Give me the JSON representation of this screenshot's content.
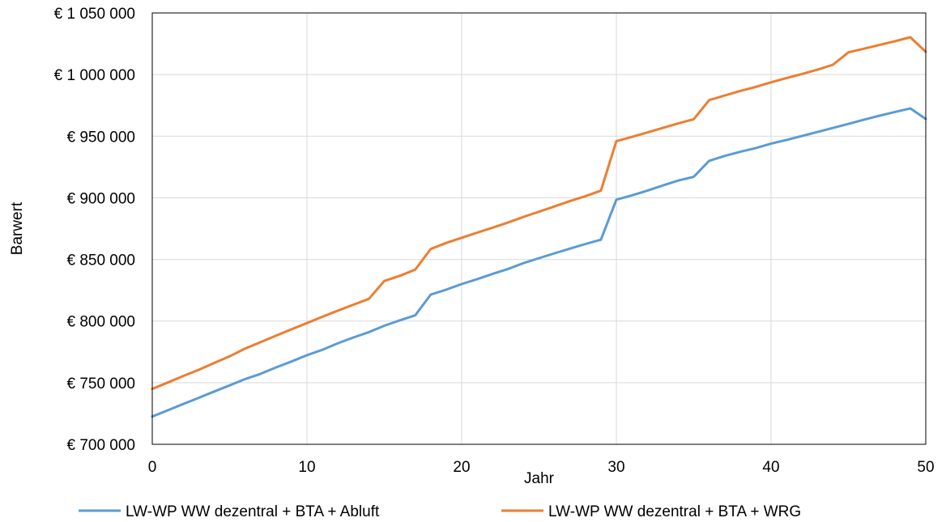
{
  "chart_data": {
    "type": "line",
    "title": "",
    "xlabel": "Jahr",
    "ylabel": "Barwert",
    "xlim": [
      0,
      50
    ],
    "ylim": [
      700000,
      1050000
    ],
    "x_ticks": [
      0,
      10,
      20,
      30,
      40,
      50
    ],
    "x_tick_labels": [
      "0",
      "10",
      "20",
      "30",
      "40",
      "50"
    ],
    "y_ticks": [
      700000,
      750000,
      800000,
      850000,
      900000,
      950000,
      1000000,
      1050000
    ],
    "y_tick_labels": [
      "€ 700 000",
      "€ 750 000",
      "€ 800 000",
      "€ 850 000",
      "€ 900 000",
      "€ 950 000",
      "€ 1 000 000",
      "€ 1 050 000"
    ],
    "grid": "vertical-and-horizontal",
    "legend_position": "bottom",
    "x": [
      0,
      1,
      2,
      3,
      4,
      5,
      6,
      7,
      8,
      9,
      10,
      11,
      12,
      13,
      14,
      15,
      16,
      17,
      18,
      19,
      20,
      21,
      22,
      23,
      24,
      25,
      26,
      27,
      28,
      29,
      30,
      31,
      32,
      33,
      34,
      35,
      36,
      37,
      38,
      39,
      40,
      41,
      42,
      43,
      44,
      45,
      46,
      47,
      48,
      49,
      50
    ],
    "series": [
      {
        "name": "LW-WP WW dezentral + BTA + Abluft",
        "color": "#5B9BD5",
        "values": [
          722500,
          727600,
          732700,
          737700,
          742800,
          747800,
          752900,
          757200,
          762400,
          767200,
          772300,
          776700,
          782000,
          786700,
          791000,
          796200,
          800600,
          804700,
          821500,
          825500,
          830000,
          834000,
          838300,
          842300,
          847000,
          851000,
          855000,
          858800,
          862500,
          866000,
          898500,
          902000,
          905800,
          910000,
          914000,
          917000,
          930000,
          934000,
          937300,
          940300,
          944000,
          947000,
          950200,
          953400,
          956700,
          960000,
          963400,
          966600,
          969600,
          972600,
          964000
        ]
      },
      {
        "name": "LW-WP WW dezentral + BTA + WRG",
        "color": "#ED7D31",
        "values": [
          745000,
          750100,
          755400,
          760400,
          766000,
          771400,
          777700,
          782900,
          788100,
          793300,
          798400,
          803500,
          808500,
          813300,
          818000,
          832500,
          836700,
          841800,
          858500,
          863400,
          867600,
          871700,
          875800,
          880000,
          884500,
          888700,
          893000,
          897400,
          901300,
          905800,
          946000,
          949400,
          953000,
          956700,
          960400,
          963800,
          979300,
          983000,
          986700,
          990000,
          993700,
          997200,
          1000500,
          1004000,
          1008000,
          1018000,
          1021000,
          1024000,
          1027000,
          1030300,
          1018500
        ]
      }
    ]
  }
}
